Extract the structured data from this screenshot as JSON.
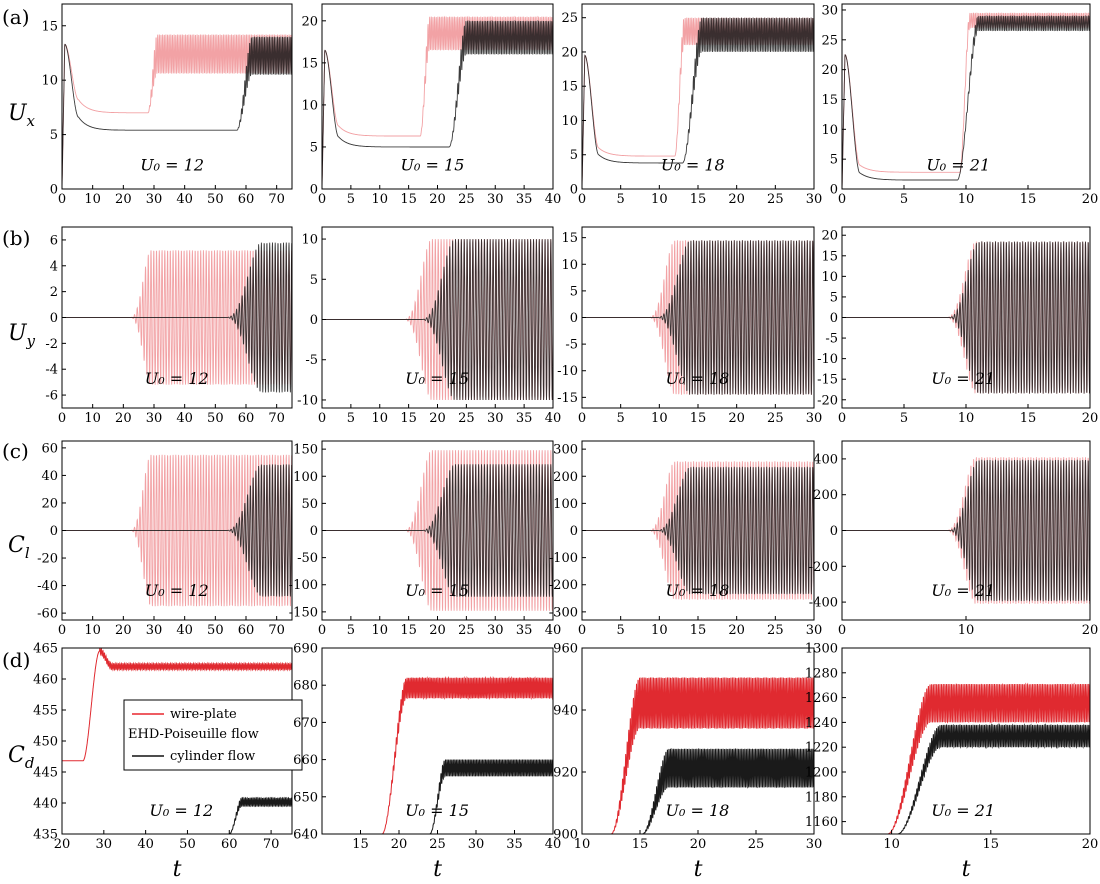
{
  "row_labels": [
    "(a)",
    "(b)",
    "(c)",
    "(d)"
  ],
  "row_ylabels": [
    {
      "main": "U",
      "sub": "x"
    },
    {
      "main": "U",
      "sub": "y"
    },
    {
      "main": "C",
      "sub": "l"
    },
    {
      "main": "C",
      "sub": "d"
    }
  ],
  "xlabel": "t",
  "legend": {
    "entries": [
      "wire-plate",
      "EHD-Poiseuille flow",
      "cylinder flow"
    ],
    "colors": [
      "#e8262e",
      null,
      "#111111"
    ]
  },
  "colors": {
    "light_red": "#f2a2a5",
    "red": "#e02a30",
    "black": "#1a1a1a",
    "dark_overlap": "#5a0d10"
  },
  "chart_data": [
    {
      "id": "a1",
      "type": "line",
      "row": 0,
      "col": 0,
      "annotation": "U₀ = 12",
      "xlim": [
        0,
        75
      ],
      "xticks": [
        0,
        10,
        20,
        30,
        40,
        50,
        60,
        70
      ],
      "ylim": [
        0,
        17
      ],
      "yticks": [
        0,
        5,
        10,
        15
      ],
      "series": [
        {
          "name": "wire-plate",
          "style": "light",
          "initial_peak": 13.3,
          "plateau": 7.0,
          "rise_t": 28,
          "osc_min": 10.6,
          "osc_max": 14.2
        },
        {
          "name": "cylinder flow",
          "style": "dark",
          "initial_peak": 13.3,
          "plateau": 5.4,
          "rise_t": 57,
          "rise_end": 62,
          "osc_min": 10.5,
          "osc_max": 14.0
        }
      ]
    },
    {
      "id": "a2",
      "type": "line",
      "row": 0,
      "col": 1,
      "annotation": "U₀ = 15",
      "xlim": [
        0,
        40
      ],
      "xticks": [
        0,
        5,
        10,
        15,
        20,
        25,
        30,
        35,
        40
      ],
      "ylim": [
        0,
        22
      ],
      "yticks": [
        0,
        5,
        10,
        15,
        20
      ],
      "series": [
        {
          "name": "wire-plate",
          "style": "light",
          "initial_peak": 16.5,
          "plateau": 6.3,
          "rise_t": 17,
          "osc_min": 16.5,
          "osc_max": 20.5
        },
        {
          "name": "cylinder flow",
          "style": "dark",
          "initial_peak": 16.5,
          "plateau": 5.0,
          "rise_t": 22,
          "rise_end": 25,
          "osc_min": 16.0,
          "osc_max": 20.0
        }
      ]
    },
    {
      "id": "a3",
      "type": "line",
      "row": 0,
      "col": 2,
      "annotation": "U₀ = 18",
      "xlim": [
        0,
        30
      ],
      "xticks": [
        0,
        5,
        10,
        15,
        20,
        25,
        30
      ],
      "ylim": [
        0,
        27
      ],
      "yticks": [
        0,
        5,
        10,
        15,
        20,
        25
      ],
      "series": [
        {
          "name": "wire-plate",
          "style": "light",
          "initial_peak": 19.5,
          "plateau": 4.8,
          "rise_t": 12,
          "osc_min": 21.0,
          "osc_max": 25.0
        },
        {
          "name": "cylinder flow",
          "style": "dark",
          "initial_peak": 19.5,
          "plateau": 3.8,
          "rise_t": 13,
          "rise_end": 15.5,
          "osc_min": 20.0,
          "osc_max": 25.0
        }
      ]
    },
    {
      "id": "a4",
      "type": "line",
      "row": 0,
      "col": 3,
      "annotation": "U₀ = 21",
      "xlim": [
        0,
        20
      ],
      "xticks": [
        0,
        5,
        10,
        15,
        20
      ],
      "ylim": [
        0,
        31
      ],
      "yticks": [
        0,
        5,
        10,
        15,
        20,
        25,
        30
      ],
      "series": [
        {
          "name": "wire-plate",
          "style": "light",
          "initial_peak": 22.5,
          "plateau": 2.8,
          "rise_t": 9.5,
          "osc_min": 27.0,
          "osc_max": 29.5
        },
        {
          "name": "cylinder flow",
          "style": "dark",
          "initial_peak": 22.5,
          "plateau": 1.5,
          "rise_t": 9.3,
          "rise_end": 11,
          "osc_min": 26.5,
          "osc_max": 29.0
        }
      ]
    },
    {
      "id": "b1",
      "type": "line",
      "row": 1,
      "col": 0,
      "annotation": "U₀ = 12",
      "xlim": [
        0,
        75
      ],
      "xticks": [
        0,
        10,
        20,
        30,
        40,
        50,
        60,
        70
      ],
      "ylim": [
        -7,
        7
      ],
      "yticks": [
        -6,
        -4,
        -2,
        0,
        2,
        4,
        6
      ],
      "series": [
        {
          "name": "wire-plate",
          "style": "light",
          "onset": 22,
          "growth_end": 29,
          "amplitude": 5.2,
          "period": 0.9
        },
        {
          "name": "cylinder flow",
          "style": "dark",
          "onset": 53,
          "growth_end": 65,
          "amplitude": 5.8,
          "period": 0.9
        }
      ]
    },
    {
      "id": "b2",
      "type": "line",
      "row": 1,
      "col": 1,
      "annotation": "U₀ = 15",
      "xlim": [
        0,
        40
      ],
      "xticks": [
        0,
        5,
        10,
        15,
        20,
        25,
        30,
        35,
        40
      ],
      "ylim": [
        -11,
        11.5
      ],
      "yticks": [
        -10,
        -5,
        0,
        5,
        10
      ],
      "series": [
        {
          "name": "wire-plate",
          "style": "light",
          "onset": 14,
          "growth_end": 19,
          "amplitude": 10.0,
          "period": 0.5
        },
        {
          "name": "cylinder flow",
          "style": "dark",
          "onset": 17,
          "growth_end": 23,
          "amplitude": 10.0,
          "period": 0.5
        }
      ]
    },
    {
      "id": "b3",
      "type": "line",
      "row": 1,
      "col": 2,
      "annotation": "U₀ = 18",
      "xlim": [
        0,
        30
      ],
      "xticks": [
        0,
        5,
        10,
        15,
        20,
        25,
        30
      ],
      "ylim": [
        -17,
        17
      ],
      "yticks": [
        -15,
        -10,
        -5,
        0,
        5,
        10,
        15
      ],
      "series": [
        {
          "name": "wire-plate",
          "style": "light",
          "onset": 8.5,
          "growth_end": 12,
          "amplitude": 14.5,
          "period": 0.35
        },
        {
          "name": "cylinder flow",
          "style": "dark",
          "onset": 9.5,
          "growth_end": 14,
          "amplitude": 14.5,
          "period": 0.35
        }
      ]
    },
    {
      "id": "b4",
      "type": "line",
      "row": 1,
      "col": 3,
      "annotation": "U₀ = 21",
      "xlim": [
        0,
        20
      ],
      "xticks": [
        0,
        5,
        10,
        15,
        20
      ],
      "ylim": [
        -22,
        22
      ],
      "yticks": [
        -20,
        -15,
        -10,
        -5,
        0,
        5,
        10,
        15,
        20
      ],
      "series": [
        {
          "name": "wire-plate",
          "style": "light",
          "onset": 8.3,
          "growth_end": 10.8,
          "amplitude": 18.5,
          "period": 0.22
        },
        {
          "name": "cylinder flow",
          "style": "dark",
          "onset": 8.5,
          "growth_end": 11,
          "amplitude": 18.5,
          "period": 0.22
        }
      ]
    },
    {
      "id": "c1",
      "type": "line",
      "row": 2,
      "col": 0,
      "annotation": "U₀ = 12",
      "xlim": [
        0,
        75
      ],
      "xticks": [
        0,
        10,
        20,
        30,
        40,
        50,
        60,
        70
      ],
      "ylim": [
        -65,
        65
      ],
      "yticks": [
        -60,
        -40,
        -20,
        0,
        20,
        40,
        60
      ],
      "series": [
        {
          "name": "wire-plate",
          "style": "light",
          "onset": 22,
          "growth_end": 29,
          "amplitude": 55,
          "period": 0.9
        },
        {
          "name": "cylinder flow",
          "style": "dark",
          "onset": 53,
          "growth_end": 65,
          "amplitude": 48,
          "period": 0.9
        }
      ]
    },
    {
      "id": "c2",
      "type": "line",
      "row": 2,
      "col": 1,
      "annotation": "U₀ = 15",
      "xlim": [
        0,
        40
      ],
      "xticks": [
        0,
        5,
        10,
        15,
        20,
        25,
        30,
        35,
        40
      ],
      "ylim": [
        -165,
        165
      ],
      "yticks": [
        -150,
        -100,
        -50,
        0,
        50,
        100,
        150
      ],
      "series": [
        {
          "name": "wire-plate",
          "style": "light",
          "onset": 14,
          "growth_end": 19,
          "amplitude": 148,
          "period": 0.5
        },
        {
          "name": "cylinder flow",
          "style": "dark",
          "onset": 17,
          "growth_end": 23,
          "amplitude": 122,
          "period": 0.5
        }
      ]
    },
    {
      "id": "c3",
      "type": "line",
      "row": 2,
      "col": 2,
      "annotation": "U₀ = 18",
      "xlim": [
        0,
        30
      ],
      "xticks": [
        0,
        5,
        10,
        15,
        20,
        25,
        30
      ],
      "ylim": [
        -330,
        330
      ],
      "yticks": [
        -300,
        -200,
        -100,
        0,
        100,
        200,
        300
      ],
      "series": [
        {
          "name": "wire-plate",
          "style": "light",
          "onset": 8.5,
          "growth_end": 12,
          "amplitude": 255,
          "period": 0.35
        },
        {
          "name": "cylinder flow",
          "style": "dark",
          "onset": 9.5,
          "growth_end": 14,
          "amplitude": 235,
          "period": 0.35
        }
      ]
    },
    {
      "id": "c4",
      "type": "line",
      "row": 2,
      "col": 3,
      "annotation": "U₀ = 21",
      "xlim": [
        0,
        20
      ],
      "xticks": [
        0,
        10,
        20
      ],
      "ylim": [
        -500,
        500
      ],
      "yticks": [
        -400,
        -200,
        0,
        200,
        400
      ],
      "series": [
        {
          "name": "wire-plate",
          "style": "light",
          "onset": 8.3,
          "growth_end": 10.8,
          "amplitude": 410,
          "period": 0.22
        },
        {
          "name": "cylinder flow",
          "style": "dark",
          "onset": 8.5,
          "growth_end": 11,
          "amplitude": 395,
          "period": 0.22
        }
      ]
    },
    {
      "id": "d1",
      "type": "line",
      "row": 3,
      "col": 0,
      "annotation": "U₀ = 12",
      "xlim": [
        20,
        75
      ],
      "xticks": [
        20,
        30,
        40,
        50,
        60,
        70
      ],
      "ylim": [
        435,
        465
      ],
      "yticks": [
        435,
        440,
        445,
        450,
        455,
        460,
        465
      ],
      "legend": true,
      "series": [
        {
          "name": "wire-plate",
          "style": "red",
          "start_t": 20,
          "base": 446.8,
          "rise_t": 25,
          "overshoot_t": 29,
          "peak": 464.5,
          "osc_min": 461.5,
          "osc_max": 462.5,
          "steady_t": 32
        },
        {
          "name": "cylinder flow",
          "style": "black",
          "start_t": 60,
          "base": 435,
          "rise_end": 63,
          "osc_min": 439.5,
          "osc_max": 440.8
        }
      ]
    },
    {
      "id": "d2",
      "type": "line",
      "row": 3,
      "col": 1,
      "annotation": "U₀ = 15",
      "xlim": [
        10,
        40
      ],
      "xticks": [
        15,
        20,
        25,
        30,
        35,
        40
      ],
      "ylim": [
        640,
        690
      ],
      "yticks": [
        640,
        650,
        660,
        670,
        680,
        690
      ],
      "series": [
        {
          "name": "wire-plate",
          "style": "red",
          "start_t": 17.8,
          "base": 640,
          "rise_end": 21,
          "osc_min": 676.5,
          "osc_max": 682
        },
        {
          "name": "cylinder flow",
          "style": "black",
          "start_t": 24,
          "base": 640,
          "rise_end": 26,
          "osc_min": 655.5,
          "osc_max": 660
        }
      ]
    },
    {
      "id": "d3",
      "type": "line",
      "row": 3,
      "col": 2,
      "annotation": "U₀ = 18",
      "xlim": [
        10,
        30
      ],
      "xticks": [
        10,
        15,
        20,
        25,
        30
      ],
      "ylim": [
        900,
        960
      ],
      "yticks": [
        900,
        920,
        940,
        960
      ],
      "series": [
        {
          "name": "wire-plate",
          "style": "red",
          "start_t": 12.5,
          "base": 900,
          "rise_end": 15,
          "osc_min": 934,
          "osc_max": 950.5
        },
        {
          "name": "cylinder flow",
          "style": "black",
          "start_t": 15.2,
          "base": 900,
          "rise_end": 17.5,
          "osc_min": 915,
          "osc_max": 927.5
        }
      ]
    },
    {
      "id": "d4",
      "type": "line",
      "row": 3,
      "col": 3,
      "annotation": "U₀ = 21",
      "xlim": [
        7.5,
        20
      ],
      "xticks": [
        10,
        15,
        20
      ],
      "ylim": [
        1150,
        1300
      ],
      "yticks": [
        1160,
        1180,
        1200,
        1220,
        1240,
        1260,
        1280,
        1300
      ],
      "series": [
        {
          "name": "wire-plate",
          "style": "red",
          "start_t": 9.8,
          "base": 1150,
          "rise_end": 12,
          "osc_min": 1240,
          "osc_max": 1271
        },
        {
          "name": "cylinder flow",
          "style": "black",
          "start_t": 10.3,
          "base": 1150,
          "rise_end": 12.5,
          "osc_min": 1220,
          "osc_max": 1238
        }
      ]
    }
  ]
}
